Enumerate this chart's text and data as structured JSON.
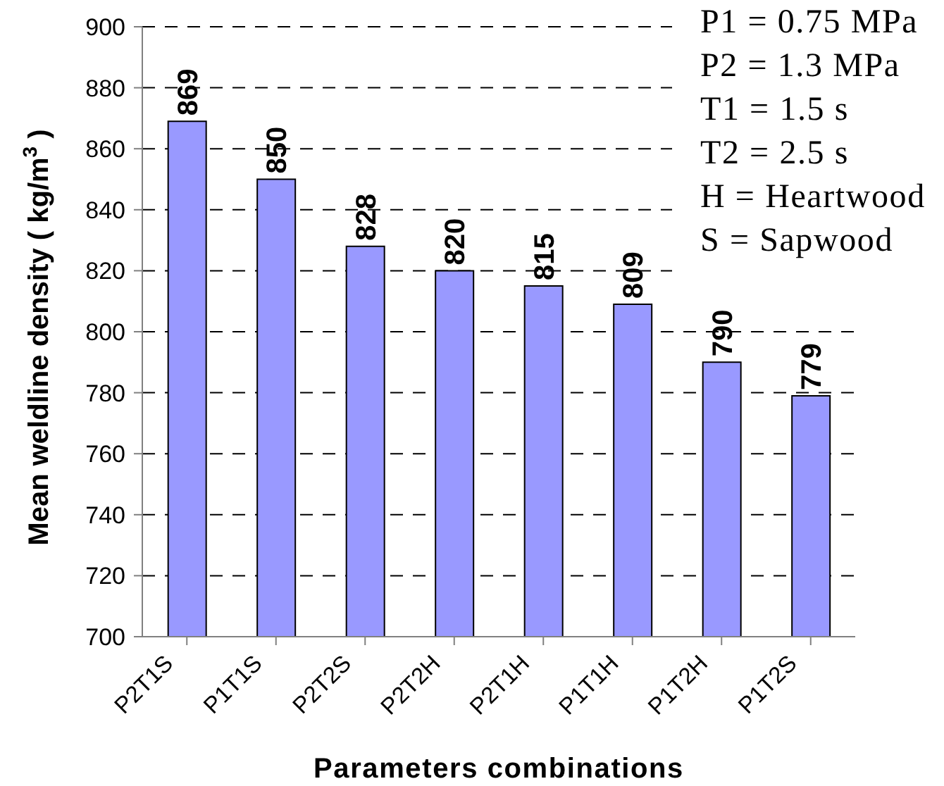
{
  "chart_data": {
    "type": "bar",
    "xlabel": "Parameters combinations",
    "ylabel": "Mean weldline density ( kg/m$^{3}$ )",
    "categories": [
      "P2T1S",
      "P1T1S",
      "P2T2S",
      "P2T2H",
      "P2T1H",
      "P1T1H",
      "P1T2H",
      "P1T2S"
    ],
    "values": [
      869,
      850,
      828,
      820,
      815,
      809,
      790,
      779
    ],
    "color": "#9999ff",
    "ylim": [
      700,
      900
    ],
    "yticks": [
      700,
      720,
      740,
      760,
      780,
      800,
      820,
      840,
      860,
      880,
      900
    ],
    "grid": "y",
    "data_labels": true,
    "annotations": [
      "P1 = 0.75 MPa",
      "P2 = 1.3 MPa",
      "T1 = 1.5 s",
      "T2 = 2.5 s",
      "H = Heartwood",
      "S = Sapwood"
    ]
  }
}
